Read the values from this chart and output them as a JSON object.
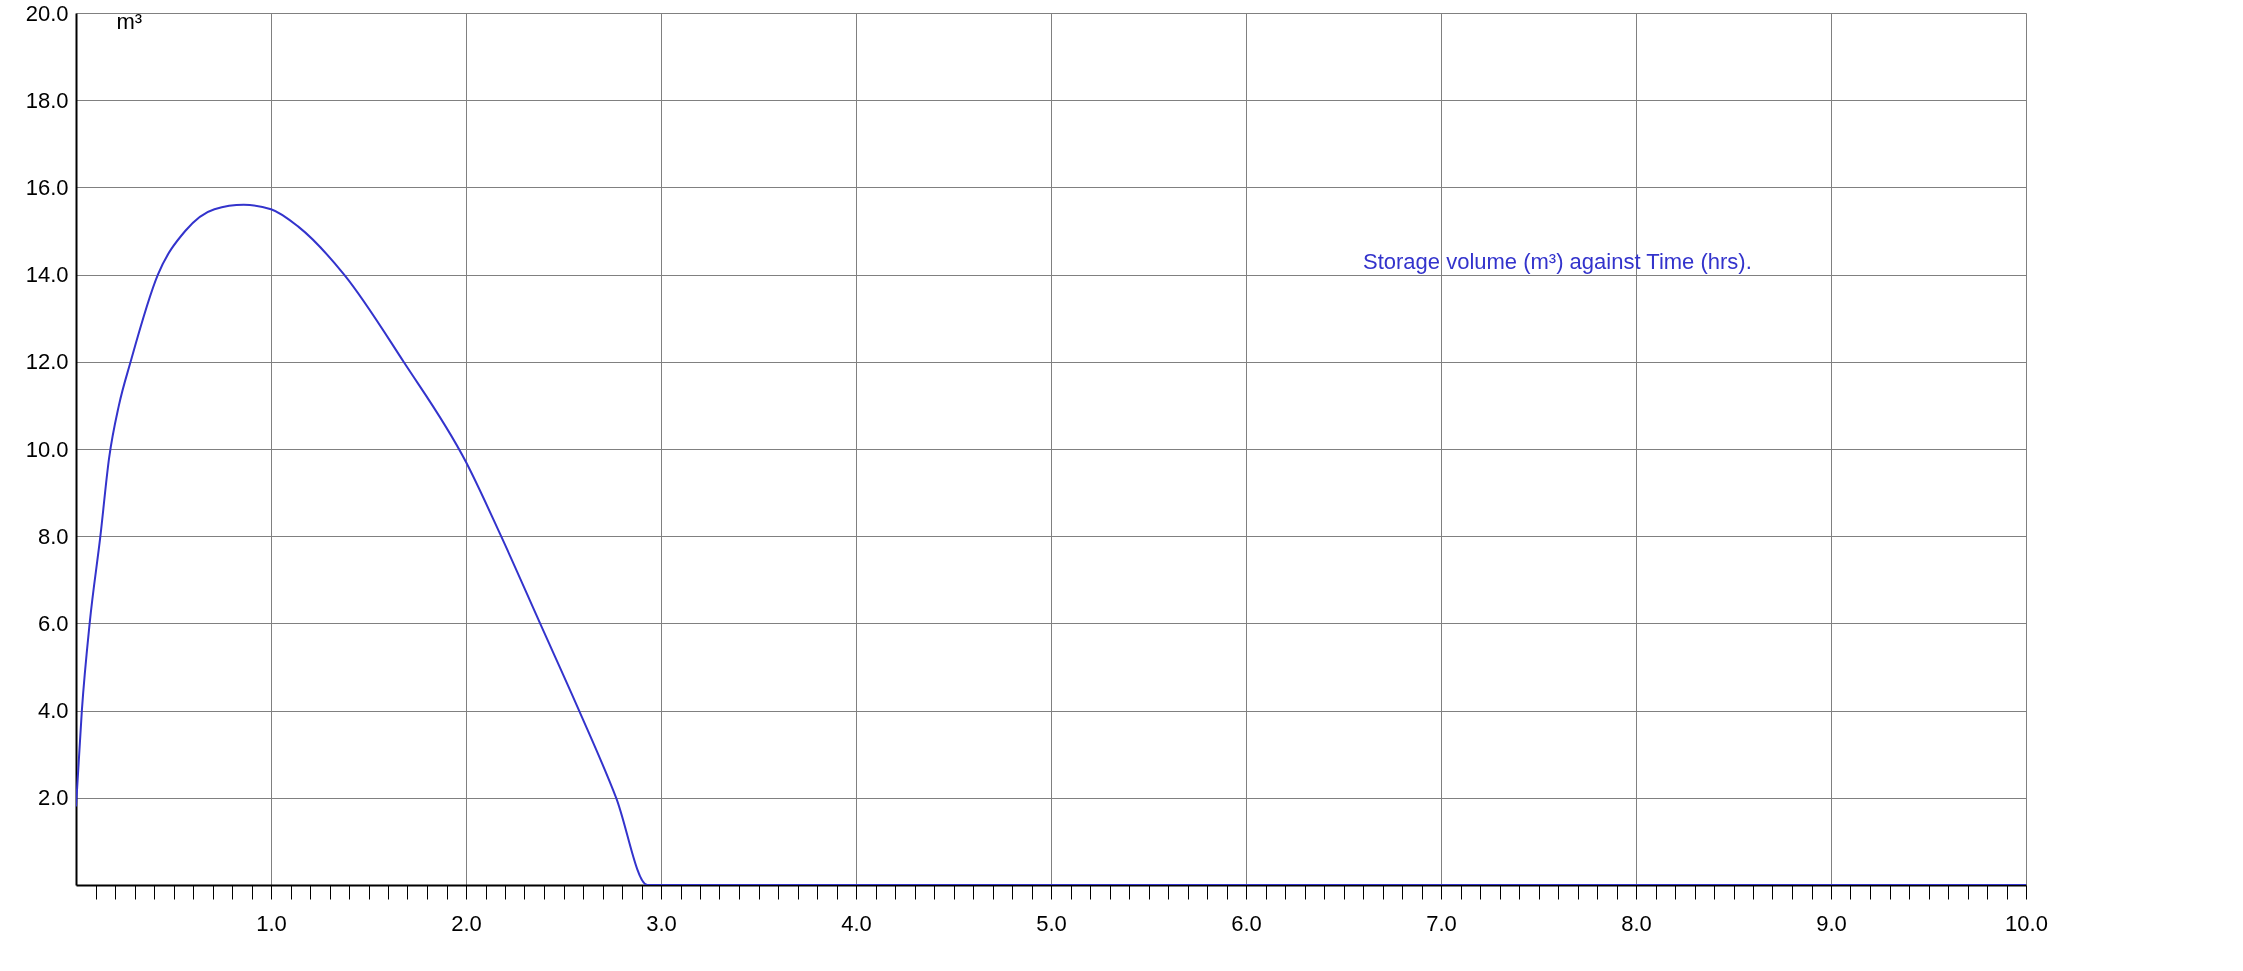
{
  "chart_data": {
    "type": "line",
    "ylabel": "m³",
    "annotations": [
      "Storage volume (m³) against Time (hrs)."
    ],
    "x": [
      0,
      0.03,
      0.07,
      0.125,
      0.17,
      0.22,
      0.28,
      0.42,
      0.56,
      0.71,
      0.86,
      1.0,
      1.14,
      1.375,
      1.68,
      2.0,
      2.18,
      2.38,
      2.58,
      2.77,
      2.93,
      10.0
    ],
    "series": [
      {
        "color": "#3333cc",
        "values": [
          1.8,
          4.0,
          6.0,
          8.0,
          9.8,
          11.0,
          12.0,
          14.0,
          15.0,
          15.5,
          15.6,
          15.5,
          15.1,
          14.0,
          12.0,
          9.7,
          8.0,
          6.0,
          4.0,
          2.0,
          0,
          0
        ]
      }
    ],
    "xlim": [
      0,
      10
    ],
    "ylim": [
      0,
      20
    ],
    "xticks": [
      {
        "value": 0.1,
        "label": null
      },
      {
        "value": 0.2,
        "label": null
      },
      {
        "value": 0.3,
        "label": null
      },
      {
        "value": 0.4,
        "label": null
      },
      {
        "value": 0.5,
        "label": null
      },
      {
        "value": 0.6,
        "label": null
      },
      {
        "value": 0.7,
        "label": null
      },
      {
        "value": 0.8,
        "label": null
      },
      {
        "value": 0.9,
        "label": null
      },
      {
        "value": 1,
        "label": "1.0"
      },
      {
        "value": 1.1,
        "label": null
      },
      {
        "value": 1.2,
        "label": null
      },
      {
        "value": 1.3,
        "label": null
      },
      {
        "value": 1.4,
        "label": null
      },
      {
        "value": 1.5,
        "label": null
      },
      {
        "value": 1.6,
        "label": null
      },
      {
        "value": 1.7,
        "label": null
      },
      {
        "value": 1.8,
        "label": null
      },
      {
        "value": 1.9,
        "label": null
      },
      {
        "value": 2,
        "label": "2.0"
      },
      {
        "value": 2.1,
        "label": null
      },
      {
        "value": 2.2,
        "label": null
      },
      {
        "value": 2.3,
        "label": null
      },
      {
        "value": 2.4,
        "label": null
      },
      {
        "value": 2.5,
        "label": null
      },
      {
        "value": 2.6,
        "label": null
      },
      {
        "value": 2.7,
        "label": null
      },
      {
        "value": 2.8,
        "label": null
      },
      {
        "value": 2.9,
        "label": null
      },
      {
        "value": 3,
        "label": "3.0"
      },
      {
        "value": 3.1,
        "label": null
      },
      {
        "value": 3.2,
        "label": null
      },
      {
        "value": 3.3,
        "label": null
      },
      {
        "value": 3.4,
        "label": null
      },
      {
        "value": 3.5,
        "label": null
      },
      {
        "value": 3.6,
        "label": null
      },
      {
        "value": 3.7,
        "label": null
      },
      {
        "value": 3.8,
        "label": null
      },
      {
        "value": 3.9,
        "label": null
      },
      {
        "value": 4,
        "label": "4.0"
      },
      {
        "value": 4.1,
        "label": null
      },
      {
        "value": 4.2,
        "label": null
      },
      {
        "value": 4.3,
        "label": null
      },
      {
        "value": 4.4,
        "label": null
      },
      {
        "value": 4.5,
        "label": null
      },
      {
        "value": 4.6,
        "label": null
      },
      {
        "value": 4.7,
        "label": null
      },
      {
        "value": 4.8,
        "label": null
      },
      {
        "value": 4.9,
        "label": null
      },
      {
        "value": 5,
        "label": "5.0"
      },
      {
        "value": 5.1,
        "label": null
      },
      {
        "value": 5.2,
        "label": null
      },
      {
        "value": 5.3,
        "label": null
      },
      {
        "value": 5.4,
        "label": null
      },
      {
        "value": 5.5,
        "label": null
      },
      {
        "value": 5.6,
        "label": null
      },
      {
        "value": 5.7,
        "label": null
      },
      {
        "value": 5.8,
        "label": null
      },
      {
        "value": 5.9,
        "label": null
      },
      {
        "value": 6,
        "label": "6.0"
      },
      {
        "value": 6.1,
        "label": null
      },
      {
        "value": 6.2,
        "label": null
      },
      {
        "value": 6.3,
        "label": null
      },
      {
        "value": 6.4,
        "label": null
      },
      {
        "value": 6.5,
        "label": null
      },
      {
        "value": 6.6,
        "label": null
      },
      {
        "value": 6.7,
        "label": null
      },
      {
        "value": 6.8,
        "label": null
      },
      {
        "value": 6.9,
        "label": null
      },
      {
        "value": 7,
        "label": "7.0"
      },
      {
        "value": 7.1,
        "label": null
      },
      {
        "value": 7.2,
        "label": null
      },
      {
        "value": 7.3,
        "label": null
      },
      {
        "value": 7.4,
        "label": null
      },
      {
        "value": 7.5,
        "label": null
      },
      {
        "value": 7.6,
        "label": null
      },
      {
        "value": 7.7,
        "label": null
      },
      {
        "value": 7.8,
        "label": null
      },
      {
        "value": 7.9,
        "label": null
      },
      {
        "value": 8,
        "label": "8.0"
      },
      {
        "value": 8.1,
        "label": null
      },
      {
        "value": 8.2,
        "label": null
      },
      {
        "value": 8.3,
        "label": null
      },
      {
        "value": 8.4,
        "label": null
      },
      {
        "value": 8.5,
        "label": null
      },
      {
        "value": 8.6,
        "label": null
      },
      {
        "value": 8.7,
        "label": null
      },
      {
        "value": 8.8,
        "label": null
      },
      {
        "value": 8.9,
        "label": null
      },
      {
        "value": 9,
        "label": "9.0"
      },
      {
        "value": 9.1,
        "label": null
      },
      {
        "value": 9.2,
        "label": null
      },
      {
        "value": 9.3,
        "label": null
      },
      {
        "value": 9.4,
        "label": null
      },
      {
        "value": 9.5,
        "label": null
      },
      {
        "value": 9.6,
        "label": null
      },
      {
        "value": 9.7,
        "label": null
      },
      {
        "value": 9.8,
        "label": null
      },
      {
        "value": 9.9,
        "label": null
      },
      {
        "value": 10,
        "label": "10.0"
      }
    ],
    "yticks": [
      {
        "value": 2,
        "label": "2.0"
      },
      {
        "value": 4,
        "label": "4.0"
      },
      {
        "value": 6,
        "label": "6.0"
      },
      {
        "value": 8,
        "label": "8.0"
      },
      {
        "value": 10,
        "label": "10.0"
      },
      {
        "value": 12,
        "label": "12.0"
      },
      {
        "value": 14,
        "label": "14.0"
      },
      {
        "value": 16,
        "label": "16.0"
      },
      {
        "value": 18,
        "label": "18.0"
      },
      {
        "value": 20,
        "label": "20.0"
      }
    ],
    "grid": true,
    "marker": "none",
    "line_style": "solid"
  }
}
